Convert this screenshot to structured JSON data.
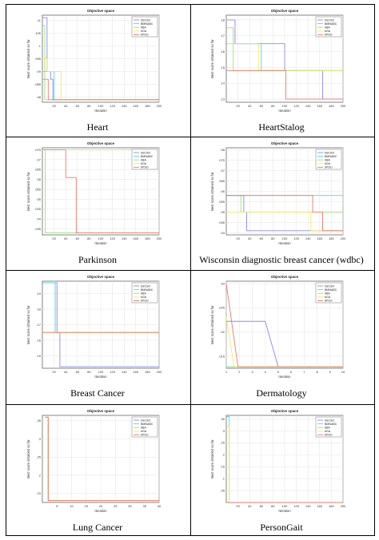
{
  "labels": {
    "title": "Objective space",
    "xlabel": "Iteration",
    "ylabel": "Best score obtained so far"
  },
  "legend": [
    "bSCSO",
    "BMNABC",
    "bBA",
    "bGA",
    "bPSO"
  ],
  "colors": {
    "bSCSO": "#8a8ae6",
    "BMNABC": "#4fd9e0",
    "bBA": "#9be07a",
    "bGA": "#f2e86a",
    "bPSO": "#f07a6e",
    "axis": "#333333",
    "grid": "#e3e3e3"
  },
  "chart_data": [
    {
      "type": "line",
      "caption": "Heart",
      "xlim": [
        0,
        200
      ],
      "xticks": [
        20,
        40,
        60,
        80,
        100,
        120,
        140,
        160,
        180,
        200
      ],
      "yticks": [
        0.11,
        0.105,
        0.1,
        0.095,
        0.09,
        0.085,
        0.08
      ],
      "ylim": [
        0.078,
        0.112
      ],
      "series": [
        {
          "name": "bSCSO",
          "x": [
            1,
            8,
            8,
            14,
            14,
            18,
            18,
            200
          ],
          "y": [
            0.111,
            0.111,
            0.09,
            0.09,
            0.087,
            0.087,
            0.079,
            0.079
          ]
        },
        {
          "name": "BMNABC",
          "x": [
            1,
            20,
            20,
            200
          ],
          "y": [
            0.09,
            0.09,
            0.079,
            0.079
          ]
        },
        {
          "name": "bBA",
          "x": [
            1,
            4,
            4,
            200
          ],
          "y": [
            0.108,
            0.108,
            0.079,
            0.079
          ]
        },
        {
          "name": "bGA",
          "x": [
            1,
            8,
            8,
            32,
            32,
            200
          ],
          "y": [
            0.095,
            0.095,
            0.09,
            0.09,
            0.079,
            0.079
          ]
        },
        {
          "name": "bPSO",
          "x": [
            1,
            10,
            10,
            200
          ],
          "y": [
            0.087,
            0.087,
            0.079,
            0.079
          ]
        }
      ]
    },
    {
      "type": "line",
      "caption": "HeartStalog",
      "xlim": [
        0,
        200
      ],
      "xticks": [
        20,
        40,
        60,
        80,
        100,
        120,
        140,
        160,
        180,
        200
      ],
      "yticks": [
        0.18,
        0.17,
        0.16,
        0.15,
        0.14,
        0.13
      ],
      "ylim": [
        0.128,
        0.183
      ],
      "series": [
        {
          "name": "bSCSO",
          "x": [
            1,
            15,
            15,
            100,
            100,
            165,
            165,
            200
          ],
          "y": [
            0.18,
            0.18,
            0.165,
            0.165,
            0.148,
            0.148,
            0.13,
            0.13
          ]
        },
        {
          "name": "BMNABC",
          "x": [
            1,
            60,
            60,
            200
          ],
          "y": [
            0.165,
            0.165,
            0.148,
            0.148
          ]
        },
        {
          "name": "bBA",
          "x": [
            1,
            12,
            12,
            200
          ],
          "y": [
            0.175,
            0.175,
            0.148,
            0.148
          ]
        },
        {
          "name": "bGA",
          "x": [
            1,
            55,
            55,
            200
          ],
          "y": [
            0.165,
            0.165,
            0.148,
            0.148
          ]
        },
        {
          "name": "bPSO",
          "x": [
            1,
            15,
            15,
            95,
            95,
            102,
            102,
            200
          ],
          "y": [
            0.148,
            0.148,
            0.148,
            0.148,
            0.148,
            0.148,
            0.13,
            0.13
          ]
        }
      ]
    },
    {
      "type": "line",
      "caption": "Parkinson",
      "xlim": [
        0,
        200
      ],
      "xticks": [
        20,
        40,
        60,
        80,
        100,
        120,
        140,
        160,
        180,
        200
      ],
      "yticks": [
        0.075,
        0.07,
        0.065,
        0.06,
        0.055,
        0.05,
        0.045,
        0.04,
        0.035
      ],
      "ylim": [
        0.032,
        0.076
      ],
      "series": [
        {
          "name": "bSCSO",
          "x": [
            1,
            200
          ],
          "y": [
            0.075,
            0.075
          ]
        },
        {
          "name": "BMNABC",
          "x": [
            1,
            200
          ],
          "y": [
            0.075,
            0.075
          ]
        },
        {
          "name": "bBA",
          "x": [
            1,
            5,
            5,
            200
          ],
          "y": [
            0.075,
            0.075,
            0.033,
            0.033
          ]
        },
        {
          "name": "bGA",
          "x": [
            1,
            200
          ],
          "y": [
            0.075,
            0.075
          ]
        },
        {
          "name": "bPSO",
          "x": [
            1,
            40,
            40,
            58,
            58,
            200
          ],
          "y": [
            0.075,
            0.075,
            0.061,
            0.061,
            0.033,
            0.033
          ]
        }
      ]
    },
    {
      "type": "line",
      "caption": "Wisconsin diagnostic breast cancer (wdbc)",
      "xlim": [
        0,
        200
      ],
      "xticks": [
        20,
        40,
        60,
        80,
        100,
        120,
        140,
        160,
        180,
        200
      ],
      "yticks": [
        0.08,
        0.075,
        0.07,
        0.065,
        0.06,
        0.055,
        0.05,
        0.045,
        0.04
      ],
      "ylim": [
        0.039,
        0.081
      ],
      "series": [
        {
          "name": "bSCSO",
          "x": [
            1,
            30,
            30,
            35,
            35,
            200
          ],
          "y": [
            0.058,
            0.058,
            0.05,
            0.05,
            0.041,
            0.041
          ]
        },
        {
          "name": "BMNABC",
          "x": [
            1,
            200
          ],
          "y": [
            0.058,
            0.058
          ]
        },
        {
          "name": "bBA",
          "x": [
            1,
            25,
            25,
            200
          ],
          "y": [
            0.058,
            0.058,
            0.05,
            0.05
          ]
        },
        {
          "name": "bGA",
          "x": [
            1,
            145,
            145,
            200
          ],
          "y": [
            0.05,
            0.05,
            0.041,
            0.041
          ]
        },
        {
          "name": "bPSO",
          "x": [
            1,
            148,
            148,
            165,
            165,
            200
          ],
          "y": [
            0.058,
            0.058,
            0.05,
            0.05,
            0.041,
            0.041
          ]
        }
      ]
    },
    {
      "type": "line",
      "caption": "Breast Cancer",
      "xlim": [
        0,
        200
      ],
      "xticks": [
        20,
        40,
        60,
        80,
        100,
        120,
        140,
        160,
        180,
        200
      ],
      "yticks": [
        0.19,
        0.18,
        0.17,
        0.16,
        0.15
      ],
      "ylim": [
        0.142,
        0.198
      ],
      "series": [
        {
          "name": "bSCSO",
          "x": [
            1,
            25,
            25,
            30,
            30,
            200
          ],
          "y": [
            0.197,
            0.197,
            0.165,
            0.165,
            0.143,
            0.143
          ]
        },
        {
          "name": "BMNABC",
          "x": [
            1,
            22,
            22,
            200
          ],
          "y": [
            0.197,
            0.197,
            0.165,
            0.165
          ]
        },
        {
          "name": "bBA",
          "x": [
            1,
            200
          ],
          "y": [
            0.165,
            0.165
          ]
        },
        {
          "name": "bGA",
          "x": [
            1,
            200
          ],
          "y": [
            0.165,
            0.165
          ]
        },
        {
          "name": "bPSO",
          "x": [
            1,
            200
          ],
          "y": [
            0.165,
            0.165
          ]
        }
      ]
    },
    {
      "type": "line",
      "caption": "Dermatology",
      "xlim": [
        1,
        10
      ],
      "xticks": [
        1,
        2,
        3,
        4,
        5,
        6,
        7,
        8,
        9,
        10
      ],
      "yticks": [
        0.03,
        0.025,
        0.02,
        0.015
      ],
      "ylim": [
        0.0125,
        0.0305
      ],
      "series": [
        {
          "name": "bSCSO",
          "x": [
            1,
            4,
            5,
            10
          ],
          "y": [
            0.0222,
            0.0222,
            0.0128,
            0.0128
          ]
        },
        {
          "name": "BMNABC",
          "x": [
            1,
            10
          ],
          "y": [
            0.0128,
            0.0128
          ]
        },
        {
          "name": "bBA",
          "x": [
            1,
            10
          ],
          "y": [
            0.0128,
            0.0128
          ]
        },
        {
          "name": "bGA",
          "x": [
            1,
            1.6,
            10
          ],
          "y": [
            0.023,
            0.0128,
            0.0128
          ]
        },
        {
          "name": "bPSO",
          "x": [
            1,
            1.9,
            10
          ],
          "y": [
            0.03,
            0.0128,
            0.0128
          ]
        }
      ]
    },
    {
      "type": "line",
      "caption": "Lung Cancer",
      "xlim": [
        0,
        40
      ],
      "xticks": [
        5,
        10,
        15,
        20,
        25,
        30,
        35,
        40
      ],
      "yticks": [
        0.35,
        0.3,
        0.25,
        0.2,
        0.15
      ],
      "ylim": [
        0.125,
        0.365
      ],
      "series": [
        {
          "name": "bSCSO",
          "x": [
            1,
            2,
            2,
            40
          ],
          "y": [
            0.36,
            0.36,
            0.13,
            0.13
          ]
        },
        {
          "name": "BMNABC",
          "x": [
            1,
            2,
            2,
            40
          ],
          "y": [
            0.36,
            0.36,
            0.13,
            0.13
          ]
        },
        {
          "name": "bBA",
          "x": [
            1,
            2,
            2,
            40
          ],
          "y": [
            0.36,
            0.36,
            0.13,
            0.13
          ]
        },
        {
          "name": "bGA",
          "x": [
            1,
            2,
            2,
            40
          ],
          "y": [
            0.36,
            0.36,
            0.13,
            0.13
          ]
        },
        {
          "name": "bPSO",
          "x": [
            1,
            2,
            2,
            40
          ],
          "y": [
            0.36,
            0.36,
            0.13,
            0.13
          ]
        }
      ]
    },
    {
      "type": "line",
      "caption": "PersonGait",
      "xlim": [
        0,
        200
      ],
      "xticks": [
        20,
        40,
        60,
        80,
        100,
        120,
        140,
        160,
        180,
        200
      ],
      "yticks": [
        0.35,
        0.3,
        0.25,
        0.2,
        0.15,
        0.1,
        0.05
      ],
      "ylim": [
        0.0,
        0.365
      ],
      "series": [
        {
          "name": "bSCSO",
          "x": [
            1,
            200
          ],
          "y": [
            0.0,
            0.0
          ]
        },
        {
          "name": "BMNABC",
          "x": [
            1,
            5,
            5,
            200
          ],
          "y": [
            0.36,
            0.36,
            0.0,
            0.0
          ]
        },
        {
          "name": "bBA",
          "x": [
            1,
            200
          ],
          "y": [
            0.0,
            0.0
          ]
        },
        {
          "name": "bGA",
          "x": [
            1,
            5,
            5,
            200
          ],
          "y": [
            0.32,
            0.32,
            0.0,
            0.0
          ]
        },
        {
          "name": "bPSO",
          "x": [
            1,
            200
          ],
          "y": [
            0.0,
            0.0
          ]
        }
      ]
    }
  ]
}
